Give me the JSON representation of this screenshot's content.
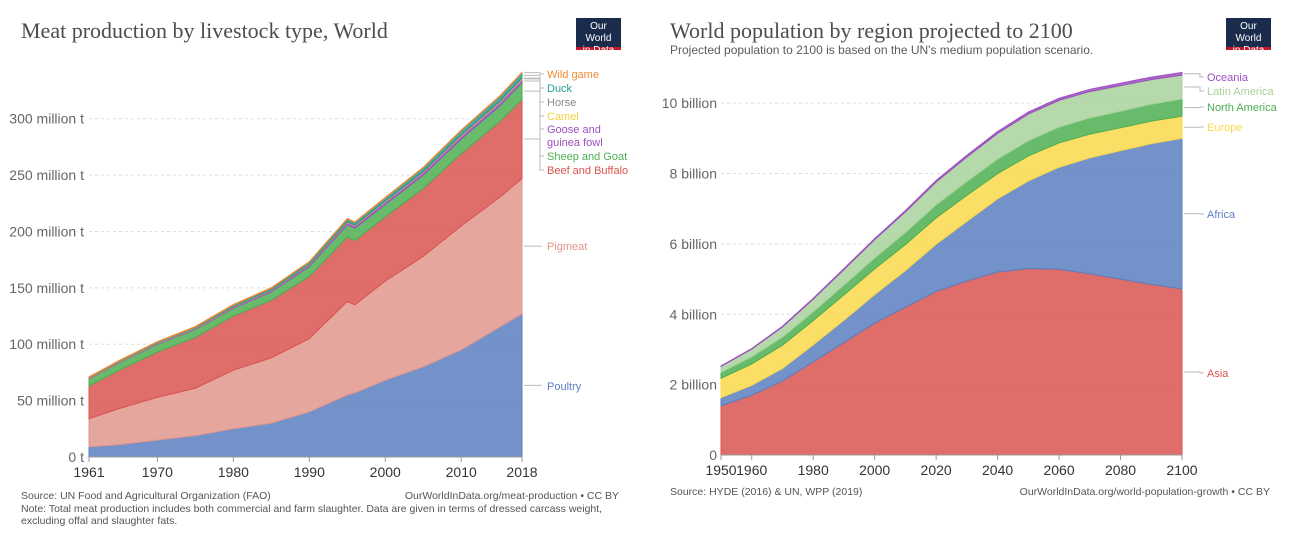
{
  "logo": {
    "line1": "Our World",
    "line2": "in Data"
  },
  "left": {
    "title": "Meat production by livestock type, World",
    "source": "Source: UN Food and Agricultural Organization (FAO)",
    "url": "OurWorldInData.org/meat-production • CC BY",
    "note": "Note: Total meat production includes both commercial and farm slaughter. Data are given in terms of dressed carcass weight, excluding offal and slaughter fats."
  },
  "right": {
    "title": "World population by region projected to 2100",
    "subtitle": "Projected population to 2100 is based on the UN's medium population scenario.",
    "source": "Source: HYDE (2016) & UN, WPP (2019)",
    "url": "OurWorldInData.org/world-population-growth • CC BY"
  },
  "chart_data": [
    {
      "type": "area",
      "stacked": true,
      "title": "Meat production by livestock type, World",
      "xlabel": "",
      "ylabel": "",
      "xlim": [
        1961,
        2018
      ],
      "ylim": [
        0,
        345
      ],
      "y_ticks": [
        0,
        50,
        100,
        150,
        200,
        250,
        300
      ],
      "y_tick_labels": [
        "0 t",
        "50 million t",
        "100 million t",
        "150 million t",
        "200 million t",
        "250 million t",
        "300 million t"
      ],
      "x_ticks": [
        1961,
        1970,
        1980,
        1990,
        2000,
        2010,
        2018
      ],
      "x_tick_labels": [
        "1961",
        "1970",
        "1980",
        "1990",
        "2000",
        "2010",
        "2018"
      ],
      "grid": "horizontal-dashed",
      "legend": "right",
      "x": [
        1961,
        1965,
        1970,
        1975,
        1980,
        1985,
        1990,
        1995,
        1996,
        2000,
        2005,
        2010,
        2015,
        2018
      ],
      "series": [
        {
          "name": "Poultry",
          "color": "#5b7fc1",
          "values": [
            9,
            11,
            15,
            19,
            25,
            30,
            40,
            55,
            57,
            68,
            80,
            95,
            115,
            127
          ]
        },
        {
          "name": "Pigmeat",
          "color": "#e0968d",
          "values": [
            25,
            32,
            38,
            42,
            52,
            58,
            65,
            83,
            78,
            88,
            98,
            110,
            115,
            120
          ]
        },
        {
          "name": "Beef and Buffalo",
          "color": "#d9534f",
          "values": [
            29,
            34,
            40,
            45,
            48,
            51,
            55,
            57,
            57,
            57,
            60,
            64,
            67,
            70
          ]
        },
        {
          "name": "Sheep and Goat",
          "color": "#4caf50",
          "values": [
            6,
            6.5,
            7,
            7,
            7,
            7.5,
            9,
            11,
            11,
            11,
            12,
            13,
            14,
            15
          ]
        },
        {
          "name": "Goose and guinea fowl",
          "color": "#9c4fc1",
          "values": [
            0.5,
            0.5,
            0.6,
            0.8,
            1,
            1.2,
            1.5,
            2,
            2,
            2.2,
            2.5,
            2.8,
            3,
            3
          ]
        },
        {
          "name": "Camel",
          "color": "#f2d23c",
          "values": [
            0.2,
            0.2,
            0.2,
            0.2,
            0.2,
            0.2,
            0.2,
            0.3,
            0.3,
            0.3,
            0.3,
            0.4,
            0.5,
            0.6
          ]
        },
        {
          "name": "Horse",
          "color": "#8a8a8a",
          "values": [
            0.6,
            0.6,
            0.6,
            0.6,
            0.6,
            0.6,
            0.6,
            0.7,
            0.7,
            0.7,
            0.7,
            0.8,
            0.8,
            0.8
          ]
        },
        {
          "name": "Duck",
          "color": "#2a9d8f",
          "values": [
            0.3,
            0.4,
            0.5,
            0.7,
            1,
            1.2,
            1.5,
            2,
            2,
            2.5,
            3,
            3.5,
            4,
            4.2
          ]
        },
        {
          "name": "Wild game",
          "color": "#f08a33",
          "values": [
            0.5,
            0.5,
            0.5,
            0.5,
            0.5,
            0.5,
            0.5,
            0.5,
            0.5,
            0.5,
            0.5,
            0.5,
            0.5,
            0.5
          ]
        }
      ]
    },
    {
      "type": "area",
      "stacked": true,
      "title": "World population by region projected to 2100",
      "subtitle": "Projected population to 2100 is based on the UN's medium population scenario.",
      "xlabel": "",
      "ylabel": "",
      "xlim": [
        1950,
        2100
      ],
      "ylim": [
        0,
        11
      ],
      "y_ticks": [
        0,
        2,
        4,
        6,
        8,
        10
      ],
      "y_tick_labels": [
        "0",
        "2 billion",
        "4 billion",
        "6 billion",
        "8 billion",
        "10 billion"
      ],
      "x_ticks": [
        1950,
        1960,
        1980,
        2000,
        2020,
        2040,
        2060,
        2080,
        2100
      ],
      "x_tick_labels": [
        "1950",
        "1960",
        "1980",
        "2000",
        "2020",
        "2040",
        "2060",
        "2080",
        "2100"
      ],
      "grid": "horizontal-dashed",
      "legend": "right",
      "x": [
        1950,
        1960,
        1970,
        1980,
        1990,
        2000,
        2010,
        2020,
        2030,
        2040,
        2050,
        2060,
        2070,
        2080,
        2090,
        2100
      ],
      "series": [
        {
          "name": "Asia",
          "color": "#d9534f",
          "values": [
            1.4,
            1.7,
            2.1,
            2.65,
            3.2,
            3.75,
            4.2,
            4.65,
            4.95,
            5.2,
            5.3,
            5.28,
            5.15,
            5.0,
            4.85,
            4.72
          ]
        },
        {
          "name": "Africa",
          "color": "#5b7fc1",
          "values": [
            0.23,
            0.28,
            0.36,
            0.48,
            0.63,
            0.81,
            1.04,
            1.34,
            1.69,
            2.08,
            2.49,
            2.9,
            3.3,
            3.65,
            4.0,
            4.28
          ]
        },
        {
          "name": "Europe",
          "color": "#f9d84a",
          "values": [
            0.55,
            0.61,
            0.66,
            0.69,
            0.72,
            0.73,
            0.74,
            0.75,
            0.74,
            0.72,
            0.71,
            0.69,
            0.67,
            0.65,
            0.64,
            0.63
          ]
        },
        {
          "name": "North America",
          "color": "#4caf50",
          "values": [
            0.17,
            0.2,
            0.23,
            0.25,
            0.28,
            0.31,
            0.34,
            0.37,
            0.39,
            0.41,
            0.43,
            0.45,
            0.46,
            0.47,
            0.48,
            0.49
          ]
        },
        {
          "name": "Latin America",
          "color": "#a8d29c",
          "values": [
            0.17,
            0.22,
            0.29,
            0.36,
            0.44,
            0.52,
            0.59,
            0.65,
            0.7,
            0.73,
            0.76,
            0.76,
            0.75,
            0.73,
            0.7,
            0.68
          ]
        },
        {
          "name": "Oceania",
          "color": "#9c4fc1",
          "values": [
            0.013,
            0.016,
            0.02,
            0.023,
            0.027,
            0.031,
            0.036,
            0.043,
            0.048,
            0.053,
            0.057,
            0.061,
            0.064,
            0.067,
            0.071,
            0.075
          ]
        }
      ]
    }
  ]
}
